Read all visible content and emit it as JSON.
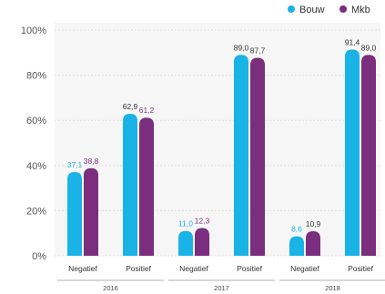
{
  "chart_data": {
    "type": "bar",
    "y_ticks": [
      "0%",
      "20%",
      "40%",
      "60%",
      "80%",
      "100%"
    ],
    "ylim": [
      0,
      100
    ],
    "grid": true,
    "legend_position": "top-right",
    "categories": [
      "Negatief",
      "Positief",
      "Negatief",
      "Positief",
      "Negatief",
      "Positief"
    ],
    "groups": [
      {
        "label": "2016",
        "span": [
          0,
          1
        ]
      },
      {
        "label": "2017",
        "span": [
          2,
          3
        ]
      },
      {
        "label": "2018",
        "span": [
          4,
          5
        ]
      }
    ],
    "series": [
      {
        "name": "Bouw",
        "color": "#19b3e6",
        "values": [
          37.1,
          62.9,
          11.0,
          89.0,
          8.6,
          91.4
        ],
        "labels": [
          "37,1",
          "62,9",
          "11,0",
          "89,0",
          "8,6",
          "91,4"
        ],
        "label_colors": [
          "#19b3e6",
          "#333333",
          "#19b3e6",
          "#333333",
          "#19b3e6",
          "#333333"
        ]
      },
      {
        "name": "Mkb",
        "color": "#7b2d7e",
        "values": [
          38.8,
          61.2,
          12.3,
          87.7,
          10.9,
          89.0
        ],
        "labels": [
          "38,8",
          "61,2",
          "12,3",
          "87,7",
          "10,9",
          "89,0"
        ],
        "label_colors": [
          "#7b2d7e",
          "#7b2d7e",
          "#7b2d7e",
          "#333333",
          "#333333",
          "#333333"
        ]
      }
    ]
  }
}
